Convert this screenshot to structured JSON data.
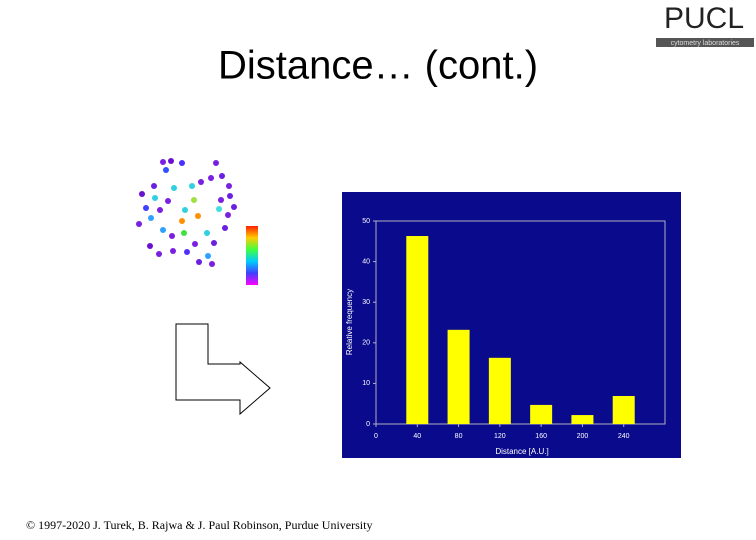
{
  "slide": {
    "title": "Distance… (cont.)",
    "logo": "PUCL",
    "logo_subtitle": "cytometry laboratories",
    "footer": "© 1997-2020 J. Turek, B. Rajwa & J. Paul Robinson, Purdue University"
  },
  "chart_data": {
    "type": "bar",
    "x": [
      40,
      80,
      120,
      160,
      200,
      240
    ],
    "values": [
      46.3,
      23.2,
      16.3,
      4.7,
      2.2,
      6.9
    ],
    "color": "#ffff00",
    "background": "#0a0a8c",
    "xlabel": "Distance [A.U.]",
    "ylabel": "Relative frequency",
    "xlim": [
      0,
      280
    ],
    "xticks": [
      0,
      40,
      80,
      120,
      160,
      200,
      240
    ],
    "ylim": [
      0,
      50
    ],
    "yticks": [
      0,
      10,
      20,
      30,
      40,
      50
    ]
  }
}
